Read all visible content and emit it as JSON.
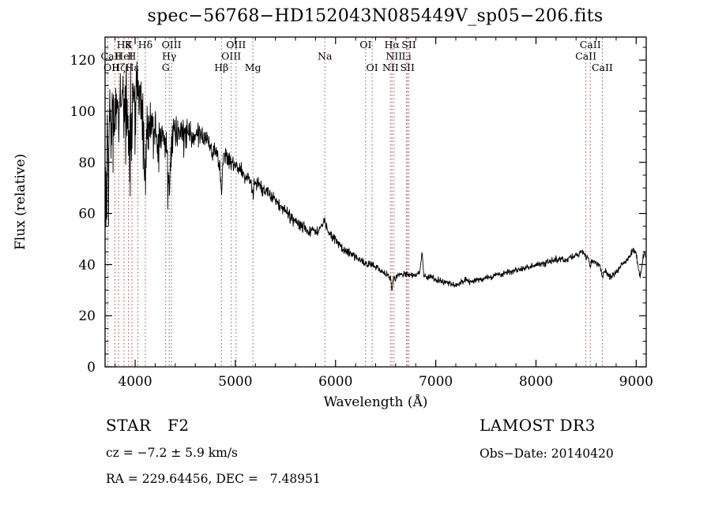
{
  "chart_data": {
    "type": "line",
    "title": "spec−56768−HD152043N085449V_sp05−206.fits",
    "xlabel": "Wavelength (Å)",
    "ylabel": "Flux (relative)",
    "xlim": [
      3700,
      9100
    ],
    "ylim": [
      0,
      129
    ],
    "xticks": [
      4000,
      5000,
      6000,
      7000,
      8000,
      9000
    ],
    "yticks": [
      0,
      20,
      40,
      60,
      80,
      100,
      120
    ],
    "x_minor_step": 200,
    "y_minor_step": 5,
    "grid": false,
    "spectrum_color": "#000000",
    "marker_line_color": "#a24d4d",
    "marker_wavelengths": [
      3727,
      3798,
      3835,
      3889,
      3933,
      3968,
      4026,
      4102,
      4305,
      4340,
      4363,
      4861,
      4959,
      5007,
      5175,
      5893,
      6300,
      6365,
      6548,
      6563,
      6584,
      6708,
      6717,
      6731,
      8498,
      8542,
      8662
    ],
    "spectral_lines": [
      {
        "wavelength": 3889,
        "label": "H8",
        "row": 1
      },
      {
        "wavelength": 3933,
        "label": "K",
        "row": 1
      },
      {
        "wavelength": 4102,
        "label": "Hδ",
        "row": 1
      },
      {
        "wavelength": 4363,
        "label": "OIII",
        "row": 1
      },
      {
        "wavelength": 5007,
        "label": "OIII",
        "row": 1
      },
      {
        "wavelength": 6300,
        "label": "OI",
        "row": 1
      },
      {
        "wavelength": 6563,
        "label": "Hα",
        "row": 1
      },
      {
        "wavelength": 6731,
        "label": "SII",
        "row": 1
      },
      {
        "wavelength": 8542,
        "label": "CaII",
        "row": 1
      },
      {
        "wavelength": 3727,
        "label": "CaII",
        "row": 2
      },
      {
        "wavelength": 3889,
        "label": "HeI",
        "row": 2
      },
      {
        "wavelength": 3968,
        "label": "H",
        "row": 2
      },
      {
        "wavelength": 4340,
        "label": "Hγ",
        "row": 2
      },
      {
        "wavelength": 4959,
        "label": "OIII",
        "row": 2
      },
      {
        "wavelength": 5893,
        "label": "Na",
        "row": 2
      },
      {
        "wavelength": 6584,
        "label": "NII",
        "row": 2
      },
      {
        "wavelength": 6708,
        "label": "Li",
        "row": 2
      },
      {
        "wavelength": 8498,
        "label": "CaII",
        "row": 2
      },
      {
        "wavelength": 3727,
        "label": "OII",
        "row": 3
      },
      {
        "wavelength": 3835,
        "label": "Hζ",
        "row": 3
      },
      {
        "wavelength": 3970,
        "label": "Hε",
        "row": 3
      },
      {
        "wavelength": 4305,
        "label": "G",
        "row": 3
      },
      {
        "wavelength": 4861,
        "label": "Hβ",
        "row": 3
      },
      {
        "wavelength": 5175,
        "label": "Mg",
        "row": 3
      },
      {
        "wavelength": 6365,
        "label": "OI",
        "row": 3
      },
      {
        "wavelength": 6548,
        "label": "NII",
        "row": 3
      },
      {
        "wavelength": 6717,
        "label": "SII",
        "row": 3
      },
      {
        "wavelength": 8662,
        "label": "CaII",
        "row": 3
      }
    ],
    "spectrum_envelope": [
      [
        3700,
        58
      ],
      [
        3708,
        88
      ],
      [
        3715,
        70
      ],
      [
        3725,
        95
      ],
      [
        3735,
        78
      ],
      [
        3745,
        102
      ],
      [
        3760,
        88
      ],
      [
        3775,
        106
      ],
      [
        3790,
        96
      ],
      [
        3805,
        104
      ],
      [
        3820,
        110
      ],
      [
        3835,
        96
      ],
      [
        3850,
        108
      ],
      [
        3865,
        100
      ],
      [
        3880,
        112
      ],
      [
        3895,
        104
      ],
      [
        3910,
        116
      ],
      [
        3925,
        106
      ],
      [
        3940,
        99
      ],
      [
        3955,
        108
      ],
      [
        3970,
        104
      ],
      [
        3985,
        112
      ],
      [
        4000,
        107
      ],
      [
        4015,
        113
      ],
      [
        4030,
        105
      ],
      [
        4045,
        110
      ],
      [
        4060,
        103
      ],
      [
        4075,
        99
      ],
      [
        4090,
        93
      ],
      [
        4105,
        88
      ],
      [
        4120,
        97
      ],
      [
        4140,
        93
      ],
      [
        4160,
        97
      ],
      [
        4180,
        91
      ],
      [
        4200,
        95
      ],
      [
        4220,
        89
      ],
      [
        4240,
        94
      ],
      [
        4260,
        92
      ],
      [
        4280,
        91
      ],
      [
        4300,
        88
      ],
      [
        4320,
        85
      ],
      [
        4340,
        81
      ],
      [
        4360,
        87
      ],
      [
        4380,
        90
      ],
      [
        4400,
        92
      ],
      [
        4430,
        91
      ],
      [
        4460,
        93
      ],
      [
        4500,
        91
      ],
      [
        4540,
        92
      ],
      [
        4580,
        90
      ],
      [
        4620,
        91
      ],
      [
        4660,
        89
      ],
      [
        4700,
        90
      ],
      [
        4740,
        87
      ],
      [
        4780,
        84
      ],
      [
        4820,
        82
      ],
      [
        4861,
        77
      ],
      [
        4880,
        81
      ],
      [
        4910,
        83
      ],
      [
        4940,
        81
      ],
      [
        4970,
        80
      ],
      [
        5000,
        80
      ],
      [
        5030,
        78
      ],
      [
        5060,
        77
      ],
      [
        5090,
        75
      ],
      [
        5120,
        74
      ],
      [
        5150,
        72
      ],
      [
        5175,
        71
      ],
      [
        5200,
        72
      ],
      [
        5230,
        72
      ],
      [
        5260,
        70
      ],
      [
        5300,
        69
      ],
      [
        5340,
        67
      ],
      [
        5380,
        66
      ],
      [
        5420,
        64
      ],
      [
        5460,
        62
      ],
      [
        5500,
        61
      ],
      [
        5540,
        59
      ],
      [
        5580,
        57
      ],
      [
        5620,
        56
      ],
      [
        5660,
        55
      ],
      [
        5700,
        54
      ],
      [
        5740,
        53
      ],
      [
        5780,
        53
      ],
      [
        5820,
        53
      ],
      [
        5860,
        55
      ],
      [
        5890,
        58
      ],
      [
        5915,
        54
      ],
      [
        5940,
        52
      ],
      [
        5970,
        51
      ],
      [
        6000,
        50
      ],
      [
        6040,
        48
      ],
      [
        6080,
        46
      ],
      [
        6120,
        45
      ],
      [
        6160,
        44
      ],
      [
        6200,
        43
      ],
      [
        6240,
        42
      ],
      [
        6280,
        41
      ],
      [
        6320,
        40
      ],
      [
        6360,
        40
      ],
      [
        6400,
        39
      ],
      [
        6440,
        38
      ],
      [
        6480,
        37
      ],
      [
        6520,
        36
      ],
      [
        6560,
        34
      ],
      [
        6600,
        35
      ],
      [
        6640,
        36
      ],
      [
        6680,
        36
      ],
      [
        6720,
        36
      ],
      [
        6760,
        36
      ],
      [
        6800,
        36
      ],
      [
        6840,
        37
      ],
      [
        6862,
        45
      ],
      [
        6880,
        36
      ],
      [
        6920,
        35
      ],
      [
        6960,
        35
      ],
      [
        7000,
        34
      ],
      [
        7040,
        34
      ],
      [
        7080,
        33
      ],
      [
        7120,
        33
      ],
      [
        7160,
        32
      ],
      [
        7200,
        32
      ],
      [
        7250,
        33
      ],
      [
        7300,
        34
      ],
      [
        7350,
        33
      ],
      [
        7400,
        34
      ],
      [
        7450,
        34
      ],
      [
        7500,
        35
      ],
      [
        7550,
        35
      ],
      [
        7600,
        36
      ],
      [
        7650,
        36
      ],
      [
        7700,
        37
      ],
      [
        7750,
        37
      ],
      [
        7800,
        38
      ],
      [
        7850,
        38
      ],
      [
        7900,
        39
      ],
      [
        7950,
        39
      ],
      [
        8000,
        40
      ],
      [
        8060,
        40
      ],
      [
        8120,
        41
      ],
      [
        8180,
        42
      ],
      [
        8240,
        42
      ],
      [
        8300,
        42
      ],
      [
        8360,
        43
      ],
      [
        8420,
        44
      ],
      [
        8460,
        45
      ],
      [
        8500,
        44
      ],
      [
        8540,
        42
      ],
      [
        8580,
        41
      ],
      [
        8620,
        40
      ],
      [
        8660,
        38
      ],
      [
        8700,
        37
      ],
      [
        8740,
        35
      ],
      [
        8780,
        36
      ],
      [
        8820,
        38
      ],
      [
        8860,
        40
      ],
      [
        8900,
        41
      ],
      [
        8940,
        44
      ],
      [
        8970,
        46
      ],
      [
        9000,
        44
      ],
      [
        9020,
        39
      ],
      [
        9040,
        35
      ],
      [
        9060,
        41
      ],
      [
        9080,
        45
      ],
      [
        9095,
        43
      ]
    ],
    "noise_profile": [
      [
        3700,
        15
      ],
      [
        4000,
        13
      ],
      [
        4300,
        9
      ],
      [
        4700,
        5
      ],
      [
        5200,
        3.5
      ],
      [
        5800,
        2.5
      ],
      [
        6300,
        1.8
      ],
      [
        7000,
        1.4
      ],
      [
        9100,
        1.6
      ]
    ],
    "absorption_lines": [
      [
        3798,
        5,
        5
      ],
      [
        3835,
        7,
        5
      ],
      [
        3889,
        11,
        6
      ],
      [
        3933,
        13,
        5
      ],
      [
        3968,
        11,
        5
      ],
      [
        4102,
        15,
        8
      ],
      [
        4227,
        5,
        4
      ],
      [
        4340,
        12,
        8
      ],
      [
        4861,
        9,
        7
      ],
      [
        5175,
        4,
        7
      ],
      [
        6563,
        4,
        6
      ],
      [
        8498,
        2,
        5
      ],
      [
        8542,
        3,
        6
      ],
      [
        8662,
        3,
        6
      ]
    ]
  },
  "annotations": {
    "object_class": "STAR   F2",
    "cz": "cz = −7.2 ± 5.9 km/s",
    "radec": "RA = 229.64456, DEC =   7.48951",
    "survey": "LAMOST DR3",
    "obs_date": "Obs−Date: 20140420"
  }
}
